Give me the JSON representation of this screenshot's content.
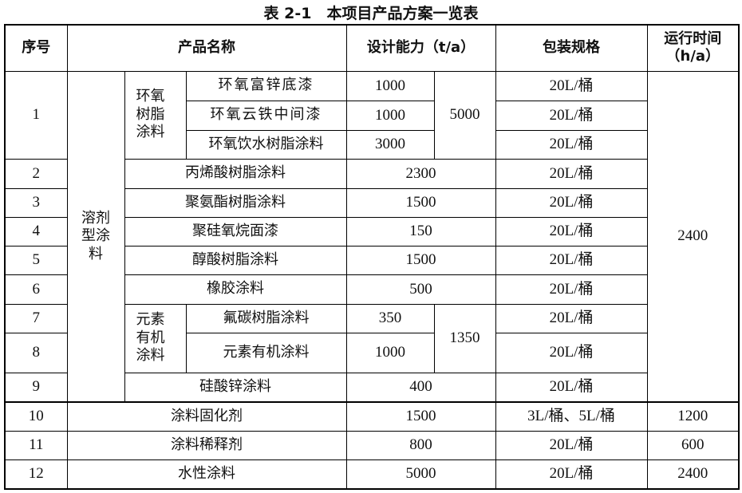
{
  "caption": "表 2-1　本项目产品方案一览表",
  "headers": {
    "no": "序号",
    "name": "产品名称",
    "capacity": "设计能力（t/a）",
    "packaging": "包装规格",
    "runtime": "运行时间（h/a）"
  },
  "groups": {
    "solvent": "溶剂型涂料",
    "epoxy": "环氧树脂涂料",
    "organo": "元素有机涂料"
  },
  "group_totals": {
    "epoxy": "5000",
    "organo": "1350"
  },
  "runtime_solvent": "2400",
  "rows": [
    {
      "no": "1",
      "name": "环氧富锌底漆",
      "capacity": "1000",
      "packaging": "20L/桶"
    },
    {
      "name": "环氧云铁中间漆",
      "capacity": "1000",
      "packaging": "20L/桶"
    },
    {
      "name": "环氧饮水树脂涂料",
      "capacity": "3000",
      "packaging": "20L/桶"
    },
    {
      "no": "2",
      "name": "丙烯酸树脂涂料",
      "capacity": "2300",
      "packaging": "20L/桶"
    },
    {
      "no": "3",
      "name": "聚氨酯树脂涂料",
      "capacity": "1500",
      "packaging": "20L/桶"
    },
    {
      "no": "4",
      "name": "聚硅氧烷面漆",
      "capacity": "150",
      "packaging": "20L/桶"
    },
    {
      "no": "5",
      "name": "醇酸树脂涂料",
      "capacity": "1500",
      "packaging": "20L/桶"
    },
    {
      "no": "6",
      "name": "橡胶涂料",
      "capacity": "500",
      "packaging": "20L/桶"
    },
    {
      "no": "7",
      "name": "氟碳树脂涂料",
      "capacity": "350",
      "packaging": "20L/桶"
    },
    {
      "no": "8",
      "name": "元素有机涂料",
      "capacity": "1000",
      "packaging": "20L/桶"
    },
    {
      "no": "9",
      "name": "硅酸锌涂料",
      "capacity": "400",
      "packaging": "20L/桶"
    },
    {
      "no": "10",
      "name": "涂料固化剂",
      "capacity": "1500",
      "packaging": "3L/桶、5L/桶",
      "runtime": "1200"
    },
    {
      "no": "11",
      "name": "涂料稀释剂",
      "capacity": "800",
      "packaging": "20L/桶",
      "runtime": "600"
    },
    {
      "no": "12",
      "name": "水性涂料",
      "capacity": "5000",
      "packaging": "20L/桶",
      "runtime": "2400"
    }
  ]
}
